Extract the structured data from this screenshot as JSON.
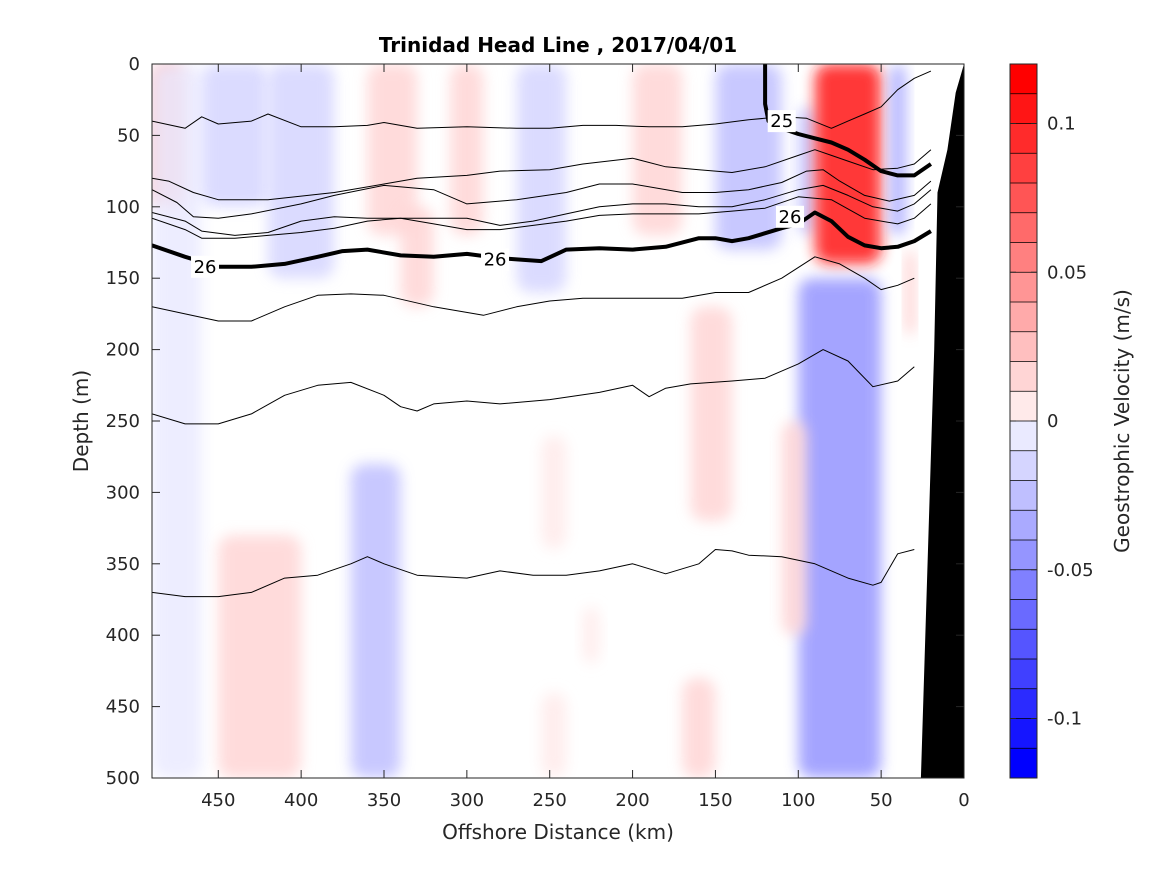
{
  "chart_data": {
    "type": "heatmap",
    "title": "Trinidad Head Line , 2017/04/01",
    "xlabel": "Offshore Distance (km)",
    "ylabel": "Depth (m)",
    "xlim": [
      490,
      0
    ],
    "ylim": [
      0,
      500
    ],
    "x_reversed": true,
    "y_reversed": true,
    "x_ticks": [
      450,
      400,
      350,
      300,
      250,
      200,
      150,
      100,
      50,
      0
    ],
    "y_ticks": [
      0,
      50,
      100,
      150,
      200,
      250,
      300,
      350,
      400,
      450,
      500
    ],
    "colorbar": {
      "label": "Geostrophic Velocity (m/s)",
      "range": [
        -0.12,
        0.12
      ],
      "levels": 24,
      "ticks": [
        0.1,
        0.05,
        0,
        -0.05,
        -0.1
      ],
      "tick_labels": [
        "0.1",
        "0.05",
        "0",
        "-0.05",
        "-0.1"
      ],
      "positive_color": "#ff0000",
      "negative_color": "#0000ff",
      "zero_color": "#ffffff"
    },
    "velocity_features": [
      {
        "x_range": [
          490,
          470
        ],
        "depth_range": [
          0,
          100
        ],
        "value": 0.035
      },
      {
        "x_range": [
          490,
          460
        ],
        "depth_range": [
          0,
          500
        ],
        "value": -0.01
      },
      {
        "x_range": [
          460,
          420
        ],
        "depth_range": [
          0,
          100
        ],
        "value": -0.015
      },
      {
        "x_range": [
          420,
          380
        ],
        "depth_range": [
          0,
          150
        ],
        "value": -0.02
      },
      {
        "x_range": [
          360,
          330
        ],
        "depth_range": [
          0,
          120
        ],
        "value": 0.02
      },
      {
        "x_range": [
          340,
          320
        ],
        "depth_range": [
          100,
          170
        ],
        "value": 0.012
      },
      {
        "x_range": [
          310,
          290
        ],
        "depth_range": [
          0,
          120
        ],
        "value": 0.015
      },
      {
        "x_range": [
          270,
          240
        ],
        "depth_range": [
          0,
          160
        ],
        "value": -0.02
      },
      {
        "x_range": [
          200,
          170
        ],
        "depth_range": [
          0,
          120
        ],
        "value": 0.015
      },
      {
        "x_range": [
          150,
          110
        ],
        "depth_range": [
          0,
          130
        ],
        "value": -0.025
      },
      {
        "x_range": [
          100,
          90
        ],
        "depth_range": [
          30,
          120
        ],
        "value": -0.03
      },
      {
        "x_range": [
          90,
          50
        ],
        "depth_range": [
          0,
          140
        ],
        "value": 0.11
      },
      {
        "x_range": [
          45,
          35
        ],
        "depth_range": [
          0,
          120
        ],
        "value": -0.04
      },
      {
        "x_range": [
          35,
          30
        ],
        "depth_range": [
          130,
          190
        ],
        "value": 0.03
      },
      {
        "x_range": [
          450,
          400
        ],
        "depth_range": [
          330,
          500
        ],
        "value": 0.012
      },
      {
        "x_range": [
          370,
          340
        ],
        "depth_range": [
          280,
          500
        ],
        "value": -0.03
      },
      {
        "x_range": [
          100,
          50
        ],
        "depth_range": [
          150,
          500
        ],
        "value": -0.05
      },
      {
        "x_range": [
          165,
          140
        ],
        "depth_range": [
          170,
          320
        ],
        "value": 0.012
      },
      {
        "x_range": [
          110,
          95
        ],
        "depth_range": [
          250,
          400
        ],
        "value": 0.012
      },
      {
        "x_range": [
          170,
          150
        ],
        "depth_range": [
          430,
          500
        ],
        "value": 0.012
      },
      {
        "x_range": [
          255,
          240
        ],
        "depth_range": [
          260,
          340
        ],
        "value": 0.01
      },
      {
        "x_range": [
          255,
          240
        ],
        "depth_range": [
          440,
          500
        ],
        "value": 0.01
      },
      {
        "x_range": [
          230,
          220
        ],
        "depth_range": [
          380,
          420
        ],
        "value": 0.01
      }
    ],
    "contours": [
      {
        "bold": false,
        "x": [
          490,
          470,
          460,
          450,
          430,
          420,
          400,
          380,
          360,
          350,
          330,
          300,
          270,
          250,
          230,
          210,
          190,
          170,
          150,
          130,
          110,
          95,
          80,
          70,
          60,
          50,
          40,
          30,
          20
        ],
        "depth": [
          40,
          45,
          37,
          42,
          40,
          35,
          44,
          44,
          43,
          41,
          45,
          44,
          45,
          45,
          43,
          43,
          44,
          44,
          42,
          39,
          37,
          38,
          45,
          40,
          35,
          30,
          18,
          10,
          5
        ]
      },
      {
        "bold": false,
        "x": [
          490,
          480,
          465,
          450,
          420,
          380,
          350,
          330,
          300,
          280,
          250,
          230,
          200,
          180,
          160,
          140,
          120,
          100,
          90,
          80,
          70,
          55,
          40,
          30,
          20
        ],
        "depth": [
          80,
          82,
          90,
          95,
          95,
          90,
          84,
          80,
          78,
          75,
          74,
          70,
          66,
          72,
          74,
          76,
          72,
          64,
          60,
          64,
          68,
          74,
          73,
          70,
          60
        ]
      },
      {
        "bold": false,
        "x": [
          490,
          475,
          465,
          450,
          430,
          400,
          380,
          350,
          320,
          300,
          270,
          240,
          220,
          200,
          170,
          150,
          130,
          110,
          95,
          85,
          75,
          60,
          45,
          30,
          20
        ],
        "depth": [
          88,
          97,
          107,
          108,
          105,
          98,
          92,
          85,
          88,
          98,
          95,
          90,
          84,
          84,
          90,
          90,
          88,
          83,
          75,
          74,
          82,
          92,
          96,
          92,
          82
        ]
      },
      {
        "bold": false,
        "x": [
          490,
          470,
          460,
          440,
          420,
          400,
          380,
          360,
          340,
          320,
          300,
          280,
          260,
          240,
          220,
          200,
          180,
          160,
          140,
          120,
          100,
          85,
          70,
          55,
          40,
          30,
          20
        ],
        "depth": [
          104,
          110,
          117,
          120,
          118,
          110,
          107,
          108,
          108,
          108,
          108,
          113,
          110,
          105,
          100,
          98,
          98,
          100,
          100,
          95,
          88,
          85,
          92,
          100,
          103,
          98,
          88
        ]
      },
      {
        "bold": false,
        "x": [
          490,
          470,
          460,
          440,
          420,
          400,
          380,
          360,
          340,
          320,
          300,
          280,
          260,
          240,
          220,
          200,
          180,
          160,
          140,
          120,
          100,
          80,
          60,
          40,
          30,
          20
        ],
        "depth": [
          108,
          116,
          122,
          122,
          120,
          118,
          115,
          110,
          108,
          112,
          116,
          116,
          113,
          110,
          106,
          105,
          105,
          105,
          103,
          101,
          93,
          95,
          108,
          112,
          108,
          98
        ]
      },
      {
        "bold": true,
        "x": [
          490,
          470,
          450,
          430,
          410,
          390,
          375,
          360,
          340,
          320,
          300,
          280,
          255,
          240,
          220,
          200,
          180,
          160,
          150,
          140,
          130,
          110,
          100,
          90,
          80,
          70,
          60,
          50,
          40,
          30,
          20
        ],
        "depth": [
          127,
          135,
          142,
          142,
          140,
          135,
          131,
          130,
          134,
          135,
          133,
          136,
          138,
          130,
          129,
          130,
          128,
          122,
          122,
          124,
          122,
          115,
          112,
          104,
          110,
          121,
          127,
          129,
          128,
          124,
          117
        ]
      },
      {
        "bold": true,
        "x": [
          120,
          120,
          118,
          110,
          100,
          90,
          80,
          70,
          60,
          50,
          40,
          30,
          20
        ],
        "depth": [
          0,
          28,
          40,
          45,
          49,
          52,
          55,
          60,
          67,
          75,
          78,
          78,
          70
        ]
      },
      {
        "bold": false,
        "x": [
          490,
          470,
          450,
          430,
          410,
          390,
          370,
          350,
          320,
          290,
          270,
          250,
          230,
          210,
          190,
          170,
          150,
          130,
          110,
          90,
          75,
          60,
          50,
          40,
          30
        ],
        "depth": [
          170,
          175,
          180,
          180,
          170,
          162,
          161,
          162,
          170,
          176,
          170,
          166,
          164,
          164,
          164,
          164,
          160,
          160,
          150,
          135,
          140,
          150,
          158,
          155,
          150
        ]
      },
      {
        "bold": false,
        "x": [
          490,
          470,
          450,
          430,
          410,
          390,
          370,
          350,
          340,
          330,
          320,
          300,
          280,
          250,
          220,
          200,
          190,
          180,
          165,
          140,
          120,
          100,
          85,
          70,
          55,
          40,
          30
        ],
        "depth": [
          245,
          252,
          252,
          245,
          232,
          225,
          223,
          232,
          240,
          243,
          238,
          236,
          238,
          235,
          230,
          225,
          233,
          227,
          224,
          222,
          220,
          210,
          200,
          208,
          226,
          222,
          212
        ]
      },
      {
        "bold": false,
        "x": [
          490,
          470,
          450,
          430,
          410,
          390,
          370,
          360,
          350,
          330,
          300,
          280,
          260,
          240,
          220,
          200,
          180,
          160,
          150,
          140,
          130,
          110,
          90,
          70,
          55,
          50,
          40,
          30
        ],
        "depth": [
          370,
          373,
          373,
          370,
          360,
          358,
          350,
          345,
          350,
          358,
          360,
          355,
          358,
          358,
          355,
          350,
          357,
          350,
          340,
          341,
          344,
          345,
          350,
          360,
          365,
          363,
          343,
          340
        ]
      }
    ],
    "contour_labels": [
      {
        "text": "26",
        "x": 458,
        "depth": 142
      },
      {
        "text": "26",
        "x": 283,
        "depth": 137
      },
      {
        "text": "26",
        "x": 105,
        "depth": 107
      },
      {
        "text": "25",
        "x": 110,
        "depth": 40
      }
    ],
    "bathymetry": {
      "color": "#000000",
      "x": [
        26,
        18,
        16,
        10,
        5,
        0
      ],
      "depth": [
        500,
        200,
        90,
        60,
        20,
        0
      ]
    }
  }
}
